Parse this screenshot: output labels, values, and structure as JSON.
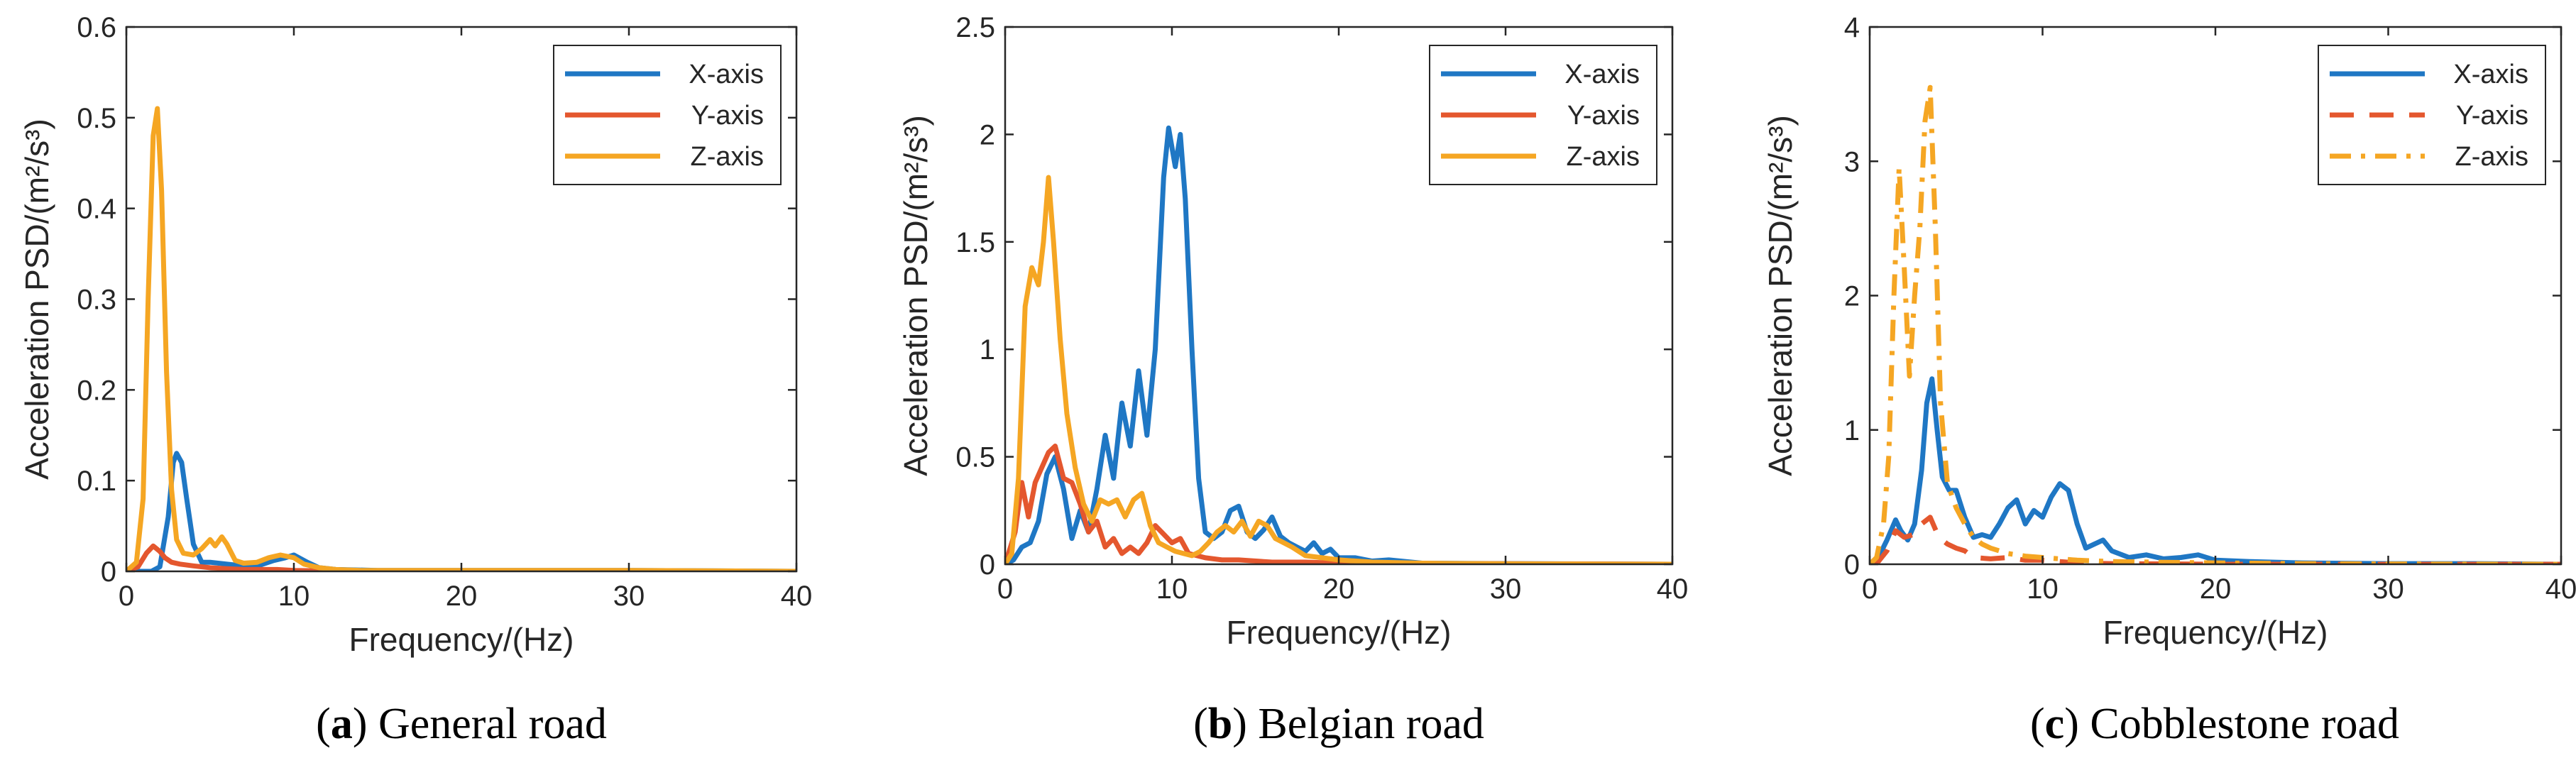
{
  "colors": {
    "x": "#1f77c4",
    "y": "#e4572e",
    "z": "#f5a623",
    "axis": "#262626",
    "box": "#000000"
  },
  "chart_data": [
    {
      "type": "line",
      "panel": "a",
      "caption": {
        "label": "a",
        "text": "General road"
      },
      "xlabel": "Frequency/(Hz)",
      "ylabel": "Acceleration PSD/(m²/s³)",
      "xlim": [
        0,
        40
      ],
      "ylim": [
        0,
        0.6
      ],
      "xticks": [
        "0",
        "10",
        "20",
        "30",
        "40"
      ],
      "yticks": [
        "0",
        "0.1",
        "0.2",
        "0.3",
        "0.4",
        "0.5",
        "0.6"
      ],
      "legend": "top-right",
      "series": [
        {
          "name": "X-axis",
          "style": "solid",
          "x": [
            0,
            1.5,
            2.0,
            2.5,
            2.8,
            3.0,
            3.3,
            3.6,
            4.0,
            4.5,
            5.0,
            6.0,
            7.0,
            8.0,
            8.8,
            9.5,
            10.0,
            10.8,
            11.5,
            12.5,
            15,
            20,
            30,
            40
          ],
          "y": [
            0,
            0,
            0.005,
            0.06,
            0.12,
            0.13,
            0.12,
            0.08,
            0.03,
            0.01,
            0.01,
            0.008,
            0.006,
            0.007,
            0.012,
            0.015,
            0.018,
            0.01,
            0.004,
            0.002,
            0.001,
            0.001,
            0.001,
            0
          ]
        },
        {
          "name": "Y-axis",
          "style": "solid",
          "x": [
            0,
            0.7,
            1.2,
            1.6,
            2.0,
            2.3,
            2.7,
            3.2,
            4.0,
            5.0,
            6.0,
            7.0,
            8.0,
            9.0,
            10.0,
            12.0,
            20,
            40
          ],
          "y": [
            0,
            0.005,
            0.02,
            0.028,
            0.022,
            0.015,
            0.01,
            0.008,
            0.006,
            0.004,
            0.003,
            0.002,
            0.002,
            0.002,
            0.001,
            0.0005,
            0,
            0
          ]
        },
        {
          "name": "Z-axis",
          "style": "solid",
          "x": [
            0,
            0.6,
            1.0,
            1.3,
            1.6,
            1.85,
            2.1,
            2.4,
            2.7,
            3.0,
            3.4,
            4.0,
            4.5,
            5.0,
            5.3,
            5.7,
            6.0,
            6.5,
            7.0,
            7.8,
            8.5,
            9.2,
            10.0,
            10.6,
            11.5,
            12.5,
            14.0,
            20,
            30,
            40
          ],
          "y": [
            0,
            0.01,
            0.08,
            0.3,
            0.48,
            0.51,
            0.42,
            0.22,
            0.09,
            0.035,
            0.02,
            0.018,
            0.025,
            0.035,
            0.028,
            0.038,
            0.03,
            0.012,
            0.009,
            0.01,
            0.015,
            0.018,
            0.015,
            0.008,
            0.004,
            0.002,
            0.001,
            0.001,
            0.001,
            0
          ]
        }
      ]
    },
    {
      "type": "line",
      "panel": "b",
      "caption": {
        "label": "b",
        "text": "Belgian road"
      },
      "xlabel": "Frequency/(Hz)",
      "ylabel": "Acceleration PSD/(m²/s³)",
      "xlim": [
        0,
        40
      ],
      "ylim": [
        0,
        2.5
      ],
      "xticks": [
        "0",
        "10",
        "20",
        "30",
        "40"
      ],
      "yticks": [
        "0",
        "0.5",
        "1",
        "1.5",
        "2",
        "2.5"
      ],
      "legend": "top-right",
      "series": [
        {
          "name": "X-axis",
          "style": "solid",
          "x": [
            0,
            0.5,
            1.0,
            1.5,
            2.0,
            2.5,
            3.0,
            3.5,
            4.0,
            4.5,
            5.0,
            5.5,
            6.0,
            6.5,
            7.0,
            7.5,
            8.0,
            8.5,
            9.0,
            9.5,
            9.8,
            10.2,
            10.5,
            10.8,
            11.2,
            11.6,
            12.0,
            12.5,
            13.0,
            13.5,
            14.0,
            14.5,
            15.0,
            15.5,
            16.0,
            16.5,
            17.0,
            17.5,
            18.0,
            18.5,
            19.0,
            19.5,
            20.0,
            21.0,
            22.0,
            23.0,
            25.0,
            30,
            40
          ],
          "y": [
            0,
            0.02,
            0.08,
            0.1,
            0.2,
            0.42,
            0.5,
            0.35,
            0.12,
            0.25,
            0.15,
            0.35,
            0.6,
            0.4,
            0.75,
            0.55,
            0.9,
            0.6,
            1.0,
            1.8,
            2.03,
            1.85,
            2.0,
            1.7,
            1.0,
            0.4,
            0.15,
            0.12,
            0.15,
            0.25,
            0.27,
            0.15,
            0.12,
            0.16,
            0.22,
            0.13,
            0.1,
            0.08,
            0.06,
            0.1,
            0.05,
            0.07,
            0.03,
            0.03,
            0.015,
            0.02,
            0.005,
            0.003,
            0
          ]
        },
        {
          "name": "Y-axis",
          "style": "solid",
          "x": [
            0,
            0.6,
            1.0,
            1.4,
            1.8,
            2.2,
            2.6,
            3.0,
            3.5,
            4.0,
            4.5,
            5.0,
            5.5,
            6.0,
            6.5,
            7.0,
            7.5,
            8.0,
            8.5,
            9.0,
            9.5,
            10.0,
            10.5,
            11.0,
            12.0,
            13.0,
            14.0,
            16.0,
            18.0,
            20.0,
            40
          ],
          "y": [
            0,
            0.15,
            0.38,
            0.22,
            0.38,
            0.45,
            0.52,
            0.55,
            0.4,
            0.38,
            0.28,
            0.15,
            0.2,
            0.08,
            0.12,
            0.05,
            0.08,
            0.05,
            0.1,
            0.18,
            0.14,
            0.1,
            0.12,
            0.05,
            0.03,
            0.02,
            0.02,
            0.01,
            0.01,
            0.005,
            0
          ]
        },
        {
          "name": "Z-axis",
          "style": "solid",
          "x": [
            0,
            0.4,
            0.8,
            1.2,
            1.6,
            2.0,
            2.3,
            2.6,
            2.9,
            3.3,
            3.7,
            4.2,
            4.7,
            5.2,
            5.7,
            6.2,
            6.7,
            7.2,
            7.7,
            8.2,
            8.7,
            9.2,
            9.7,
            10.2,
            10.7,
            11.2,
            11.7,
            12.2,
            12.7,
            13.2,
            13.7,
            14.2,
            14.7,
            15.2,
            15.7,
            16.2,
            16.7,
            17.2,
            18.0,
            19.0,
            20.0,
            22.0,
            25.0,
            30,
            40
          ],
          "y": [
            0,
            0.05,
            0.4,
            1.2,
            1.38,
            1.3,
            1.5,
            1.8,
            1.5,
            1.05,
            0.7,
            0.45,
            0.28,
            0.2,
            0.3,
            0.28,
            0.3,
            0.22,
            0.3,
            0.33,
            0.18,
            0.1,
            0.08,
            0.06,
            0.05,
            0.04,
            0.06,
            0.1,
            0.15,
            0.18,
            0.15,
            0.2,
            0.13,
            0.2,
            0.18,
            0.12,
            0.1,
            0.08,
            0.04,
            0.03,
            0.02,
            0.01,
            0.005,
            0.002,
            0
          ]
        }
      ]
    },
    {
      "type": "line",
      "panel": "c",
      "caption": {
        "label": "c",
        "text": "Cobblestone road"
      },
      "xlabel": "Frequency/(Hz)",
      "ylabel": "Acceleration PSD/(m²/s³)",
      "xlim": [
        0,
        40
      ],
      "ylim": [
        0,
        4
      ],
      "xticks": [
        "0",
        "10",
        "20",
        "30",
        "40"
      ],
      "yticks": [
        "0",
        "1",
        "2",
        "3",
        "4"
      ],
      "legend": "top-right",
      "series": [
        {
          "name": "X-axis",
          "style": "solid",
          "x": [
            0,
            0.5,
            1.0,
            1.5,
            1.8,
            2.2,
            2.6,
            3.0,
            3.3,
            3.6,
            3.9,
            4.2,
            4.6,
            5.0,
            5.5,
            6.0,
            6.5,
            7.0,
            7.5,
            8.0,
            8.5,
            9.0,
            9.5,
            10.0,
            10.5,
            11.0,
            11.5,
            12.0,
            12.5,
            13.0,
            13.5,
            14.0,
            15.0,
            16.0,
            17.0,
            18.0,
            19.0,
            20.0,
            22.0,
            25.0,
            30.0,
            35.0,
            40
          ],
          "y": [
            0,
            0.05,
            0.18,
            0.33,
            0.25,
            0.18,
            0.3,
            0.7,
            1.2,
            1.38,
            1.0,
            0.65,
            0.55,
            0.55,
            0.35,
            0.2,
            0.22,
            0.2,
            0.3,
            0.42,
            0.48,
            0.3,
            0.4,
            0.35,
            0.5,
            0.6,
            0.55,
            0.3,
            0.12,
            0.15,
            0.18,
            0.1,
            0.05,
            0.07,
            0.04,
            0.05,
            0.07,
            0.03,
            0.02,
            0.01,
            0.005,
            0.005,
            0
          ]
        },
        {
          "name": "Y-axis",
          "style": "dashed",
          "x": [
            0,
            0.5,
            1.0,
            1.5,
            2.0,
            2.5,
            3.0,
            3.5,
            4.0,
            4.5,
            5.0,
            5.5,
            6.0,
            7.0,
            8.0,
            9.0,
            10.0,
            11.0,
            12.0,
            14.0,
            20.0,
            40
          ],
          "y": [
            0,
            0.02,
            0.1,
            0.25,
            0.2,
            0.22,
            0.3,
            0.35,
            0.2,
            0.15,
            0.12,
            0.1,
            0.05,
            0.04,
            0.05,
            0.03,
            0.03,
            0.02,
            0.01,
            0.005,
            0,
            0
          ]
        },
        {
          "name": "Z-axis",
          "style": "dashdot",
          "x": [
            0,
            0.4,
            0.8,
            1.1,
            1.4,
            1.7,
            2.0,
            2.3,
            2.6,
            2.9,
            3.2,
            3.5,
            3.8,
            4.1,
            4.5,
            5.0,
            5.5,
            6.0,
            6.5,
            7.0,
            7.5,
            8.0,
            9.0,
            10.0,
            11.0,
            12.0,
            14.0,
            17.0,
            20.0,
            25.0,
            30.0,
            40
          ],
          "y": [
            0,
            0.05,
            0.3,
            0.8,
            2.0,
            2.95,
            2.2,
            1.4,
            2.0,
            2.5,
            3.3,
            3.55,
            2.5,
            1.2,
            0.6,
            0.42,
            0.3,
            0.2,
            0.15,
            0.12,
            0.1,
            0.08,
            0.06,
            0.05,
            0.04,
            0.03,
            0.02,
            0.015,
            0.01,
            0.005,
            0.002,
            0
          ]
        }
      ]
    }
  ]
}
